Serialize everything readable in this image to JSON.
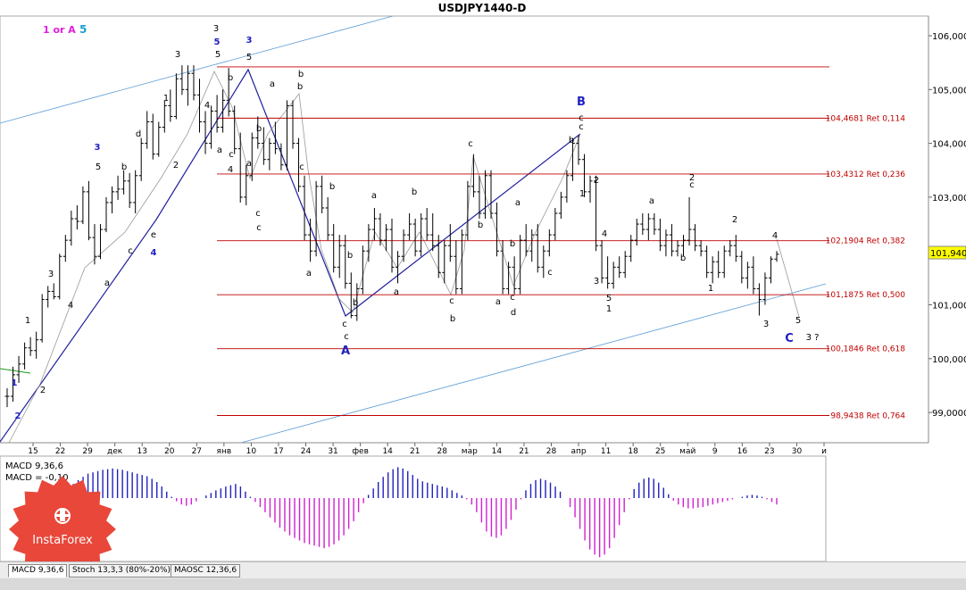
{
  "chart_data": {
    "type": "ohlc",
    "title": "USDJPY1440-D",
    "price_axis": {
      "ticks": [
        {
          "value": 106.0,
          "label": "106,0000"
        },
        {
          "value": 105.0,
          "label": "105,0000"
        },
        {
          "value": 104.0,
          "label": "104,0000"
        },
        {
          "value": 103.0,
          "label": "103,0000"
        },
        {
          "value": 101.0,
          "label": "101,0000"
        },
        {
          "value": 100.0,
          "label": "100,0000"
        },
        {
          "value": 99.0,
          "label": "99,0000"
        }
      ],
      "range": [
        98.5,
        106.4
      ]
    },
    "date_axis": {
      "ticks": [
        "15",
        "22",
        "29",
        "дек",
        "13",
        "20",
        "27",
        "янв",
        "10",
        "17",
        "24",
        "31",
        "фев",
        "14",
        "21",
        "28",
        "мар",
        "14",
        "21",
        "28",
        "апр",
        "11",
        "18",
        "25",
        "май",
        "9",
        "16",
        "23",
        "30",
        "и"
      ]
    },
    "current_price": {
      "value": 101.94,
      "label": "101,940",
      "color": "#ffff00"
    },
    "levels": [
      {
        "value": 105.42,
        "label": ""
      },
      {
        "value": 104.4681,
        "label": "104,4681 Ret 0,114"
      },
      {
        "value": 103.4312,
        "label": "103,4312 Ret 0,236"
      },
      {
        "value": 102.1904,
        "label": "102,1904 Ret 0,382"
      },
      {
        "value": 101.1875,
        "label": "101,1875 Ret 0,500"
      },
      {
        "value": 100.1846,
        "label": "100,1846 Ret 0,618"
      },
      {
        "value": 98.9438,
        "label": "98,9438 Ret 0,764"
      }
    ],
    "header_labels": [
      {
        "text": "1 or A",
        "color": "#e020e0"
      },
      {
        "text": "5",
        "color": "#1aa0d0"
      }
    ],
    "ohlc_bars": [
      [
        99.3,
        99.45,
        99.1,
        99.3
      ],
      [
        99.3,
        99.85,
        99.2,
        99.7
      ],
      [
        99.7,
        100.05,
        99.55,
        99.9
      ],
      [
        99.9,
        100.3,
        99.8,
        100.2
      ],
      [
        100.2,
        100.4,
        100.05,
        100.15
      ],
      [
        100.15,
        100.5,
        100.0,
        100.35
      ],
      [
        100.35,
        101.2,
        100.3,
        101.1
      ],
      [
        101.1,
        101.35,
        100.95,
        101.25
      ],
      [
        101.25,
        101.4,
        101.1,
        101.15
      ],
      [
        101.15,
        101.95,
        101.1,
        101.9
      ],
      [
        101.9,
        102.3,
        101.8,
        102.2
      ],
      [
        102.2,
        102.75,
        102.1,
        102.6
      ],
      [
        102.6,
        102.85,
        102.4,
        102.55
      ],
      [
        102.55,
        103.2,
        102.5,
        103.1
      ],
      [
        103.1,
        103.3,
        102.2,
        102.25
      ],
      [
        102.25,
        102.5,
        101.75,
        101.9
      ],
      [
        101.9,
        102.5,
        101.85,
        102.4
      ],
      [
        102.4,
        103.0,
        102.35,
        102.9
      ],
      [
        102.9,
        103.2,
        102.7,
        103.1
      ],
      [
        103.1,
        103.4,
        102.95,
        103.15
      ],
      [
        103.15,
        103.5,
        103.05,
        103.3
      ],
      [
        103.3,
        103.45,
        102.8,
        102.9
      ],
      [
        102.9,
        103.5,
        102.7,
        103.4
      ],
      [
        103.4,
        104.1,
        103.3,
        104.0
      ],
      [
        104.0,
        104.6,
        103.9,
        104.4
      ],
      [
        104.4,
        104.55,
        103.7,
        103.8
      ],
      [
        103.8,
        104.4,
        103.75,
        104.3
      ],
      [
        104.3,
        104.8,
        104.2,
        104.7
      ],
      [
        104.7,
        105.0,
        104.4,
        104.5
      ],
      [
        104.5,
        105.3,
        104.45,
        105.2
      ],
      [
        105.2,
        105.45,
        104.9,
        105.0
      ],
      [
        105.0,
        105.45,
        104.7,
        105.3
      ],
      [
        105.3,
        105.45,
        104.8,
        104.9
      ],
      [
        104.9,
        105.2,
        104.2,
        104.4
      ],
      [
        104.4,
        104.6,
        103.8,
        104.0
      ],
      [
        104.0,
        104.7,
        103.9,
        104.6
      ],
      [
        104.6,
        104.9,
        104.2,
        104.3
      ],
      [
        104.3,
        105.0,
        104.2,
        104.8
      ],
      [
        104.8,
        105.4,
        104.5,
        104.6
      ],
      [
        104.6,
        104.7,
        103.8,
        103.9
      ],
      [
        103.9,
        104.2,
        102.9,
        103.0
      ],
      [
        103.0,
        103.6,
        102.85,
        103.4
      ],
      [
        103.4,
        104.2,
        103.3,
        104.1
      ],
      [
        104.1,
        104.5,
        103.9,
        104.0
      ],
      [
        104.0,
        104.3,
        103.6,
        103.7
      ],
      [
        103.7,
        104.1,
        103.5,
        104.0
      ],
      [
        104.0,
        104.4,
        103.8,
        103.9
      ],
      [
        103.9,
        104.0,
        103.5,
        103.6
      ],
      [
        103.6,
        104.8,
        103.5,
        104.7
      ],
      [
        104.7,
        104.8,
        103.9,
        104.0
      ],
      [
        104.0,
        104.1,
        103.1,
        103.2
      ],
      [
        103.2,
        103.4,
        102.2,
        102.3
      ],
      [
        102.3,
        102.6,
        101.8,
        102.0
      ],
      [
        102.0,
        103.3,
        101.9,
        103.2
      ],
      [
        103.2,
        103.4,
        102.7,
        102.8
      ],
      [
        102.8,
        103.0,
        102.2,
        102.3
      ],
      [
        102.3,
        102.5,
        101.6,
        101.7
      ],
      [
        101.7,
        102.3,
        101.5,
        102.1
      ],
      [
        102.1,
        102.3,
        101.3,
        101.4
      ],
      [
        101.4,
        101.6,
        100.75,
        100.8
      ],
      [
        100.8,
        101.4,
        100.7,
        101.3
      ],
      [
        101.3,
        102.1,
        101.2,
        102.0
      ],
      [
        102.0,
        102.5,
        101.8,
        102.4
      ],
      [
        102.4,
        102.8,
        102.2,
        102.6
      ],
      [
        102.6,
        102.7,
        102.1,
        102.2
      ],
      [
        102.2,
        102.5,
        102.0,
        102.4
      ],
      [
        102.4,
        102.6,
        101.6,
        101.7
      ],
      [
        101.7,
        102.0,
        101.4,
        101.9
      ],
      [
        101.9,
        102.4,
        101.8,
        102.3
      ],
      [
        102.3,
        102.7,
        102.2,
        102.5
      ],
      [
        102.5,
        102.6,
        101.9,
        102.0
      ],
      [
        102.0,
        102.7,
        101.9,
        102.6
      ],
      [
        102.6,
        102.8,
        102.2,
        102.3
      ],
      [
        102.3,
        102.7,
        102.0,
        102.1
      ],
      [
        102.1,
        102.3,
        101.5,
        101.6
      ],
      [
        101.6,
        102.2,
        101.4,
        102.1
      ],
      [
        102.1,
        102.5,
        101.8,
        101.9
      ],
      [
        101.9,
        102.2,
        101.2,
        101.3
      ],
      [
        101.3,
        102.4,
        101.2,
        102.3
      ],
      [
        102.3,
        103.3,
        102.2,
        103.2
      ],
      [
        103.2,
        103.8,
        103.0,
        103.1
      ],
      [
        103.1,
        103.4,
        102.6,
        102.7
      ],
      [
        102.7,
        103.5,
        102.6,
        103.4
      ],
      [
        103.4,
        103.5,
        102.6,
        102.7
      ],
      [
        102.7,
        102.9,
        101.9,
        102.0
      ],
      [
        102.0,
        102.2,
        101.2,
        101.3
      ],
      [
        101.3,
        101.8,
        101.2,
        101.7
      ],
      [
        101.7,
        101.9,
        101.2,
        101.3
      ],
      [
        101.3,
        102.3,
        101.2,
        102.2
      ],
      [
        102.2,
        102.5,
        101.9,
        102.0
      ],
      [
        102.0,
        102.4,
        101.8,
        102.3
      ],
      [
        102.3,
        102.5,
        101.6,
        101.7
      ],
      [
        101.7,
        102.1,
        101.5,
        102.0
      ],
      [
        102.0,
        102.4,
        101.9,
        102.3
      ],
      [
        102.3,
        102.8,
        102.2,
        102.7
      ],
      [
        102.7,
        103.1,
        102.6,
        103.0
      ],
      [
        103.0,
        103.5,
        102.9,
        103.4
      ],
      [
        103.4,
        104.1,
        103.3,
        104.0
      ],
      [
        104.0,
        104.15,
        103.6,
        103.7
      ],
      [
        103.7,
        103.8,
        103.0,
        103.1
      ],
      [
        103.1,
        103.4,
        102.9,
        103.3
      ],
      [
        103.3,
        103.4,
        102.0,
        102.1
      ],
      [
        102.1,
        102.2,
        101.4,
        101.5
      ],
      [
        101.5,
        101.9,
        101.3,
        101.4
      ],
      [
        101.4,
        101.8,
        101.3,
        101.7
      ],
      [
        101.7,
        101.9,
        101.5,
        101.6
      ],
      [
        101.6,
        102.0,
        101.5,
        101.9
      ],
      [
        101.9,
        102.3,
        101.8,
        102.2
      ],
      [
        102.2,
        102.6,
        102.1,
        102.5
      ],
      [
        102.5,
        102.7,
        102.3,
        102.4
      ],
      [
        102.4,
        102.7,
        102.2,
        102.6
      ],
      [
        102.6,
        102.7,
        102.3,
        102.4
      ],
      [
        102.4,
        102.6,
        102.0,
        102.1
      ],
      [
        102.1,
        102.4,
        101.9,
        102.3
      ],
      [
        102.3,
        102.5,
        101.9,
        102.0
      ],
      [
        102.0,
        102.2,
        101.9,
        102.1
      ],
      [
        102.1,
        102.3,
        101.9,
        102.2
      ],
      [
        102.2,
        103.0,
        102.1,
        102.4
      ],
      [
        102.4,
        102.5,
        102.0,
        102.1
      ],
      [
        102.1,
        102.2,
        101.9,
        102.0
      ],
      [
        102.0,
        102.1,
        101.5,
        101.6
      ],
      [
        101.6,
        101.9,
        101.4,
        101.8
      ],
      [
        101.8,
        102.0,
        101.5,
        101.6
      ],
      [
        101.6,
        102.1,
        101.5,
        102.0
      ],
      [
        102.0,
        102.2,
        101.9,
        102.1
      ],
      [
        102.1,
        102.3,
        101.8,
        101.9
      ],
      [
        101.9,
        102.0,
        101.4,
        101.5
      ],
      [
        101.5,
        101.8,
        101.3,
        101.7
      ],
      [
        101.7,
        101.9,
        101.2,
        101.3
      ],
      [
        101.3,
        101.4,
        100.8,
        101.1
      ],
      [
        101.1,
        101.6,
        101.0,
        101.5
      ],
      [
        101.5,
        101.9,
        101.4,
        101.85
      ],
      [
        101.85,
        102.0,
        101.8,
        101.94
      ]
    ],
    "wave_labels": [
      {
        "text": "1",
        "color": "#2020c0"
      },
      {
        "text": "2",
        "color": "#2020c0"
      },
      {
        "text": "1",
        "color": "#000000"
      },
      {
        "text": "2",
        "color": "#000000"
      },
      {
        "text": "3",
        "color": "#000000"
      },
      {
        "text": "4",
        "color": "#000000"
      },
      {
        "text": "a",
        "color": "#000000"
      },
      {
        "text": "5",
        "color": "#000000"
      },
      {
        "text": "3",
        "color": "#2020c0"
      },
      {
        "text": "c",
        "color": "#000000"
      },
      {
        "text": "e",
        "color": "#000000"
      },
      {
        "text": "4",
        "color": "#2020c0"
      },
      {
        "text": "b",
        "color": "#000000"
      },
      {
        "text": "d",
        "color": "#000000"
      },
      {
        "text": "1",
        "color": "#000000"
      },
      {
        "text": "2",
        "color": "#000000"
      },
      {
        "text": "3",
        "color": "#000000"
      },
      {
        "text": "4",
        "color": "#000000"
      },
      {
        "text": "5",
        "color": "#000000"
      },
      {
        "text": "3",
        "color": "#000000"
      },
      {
        "text": "5",
        "color": "#2020c0"
      },
      {
        "text": "3",
        "color": "#2020c0"
      },
      {
        "text": "5",
        "color": "#000000"
      },
      {
        "text": "b",
        "color": "#000000"
      },
      {
        "text": "a",
        "color": "#000000"
      },
      {
        "text": "c",
        "color": "#000000"
      },
      {
        "text": "4",
        "color": "#000000"
      },
      {
        "text": "a",
        "color": "#000000"
      },
      {
        "text": "c",
        "color": "#000000"
      },
      {
        "text": "b",
        "color": "#000000"
      },
      {
        "text": "c",
        "color": "#000000"
      },
      {
        "text": "a",
        "color": "#000000"
      },
      {
        "text": "b",
        "color": "#000000"
      },
      {
        "text": "b",
        "color": "#000000"
      },
      {
        "text": "c",
        "color": "#000000"
      },
      {
        "text": "a",
        "color": "#000000"
      },
      {
        "text": "b",
        "color": "#000000"
      },
      {
        "text": "b",
        "color": "#000000"
      },
      {
        "text": "c",
        "color": "#000000"
      },
      {
        "text": "c",
        "color": "#000000"
      },
      {
        "text": "A",
        "color": "#2020c0"
      },
      {
        "text": "a",
        "color": "#000000"
      },
      {
        "text": "b",
        "color": "#000000"
      },
      {
        "text": "a",
        "color": "#000000"
      },
      {
        "text": "b",
        "color": "#000000"
      },
      {
        "text": "c",
        "color": "#000000"
      },
      {
        "text": "c",
        "color": "#000000"
      },
      {
        "text": "b",
        "color": "#000000"
      },
      {
        "text": "b",
        "color": "#000000"
      },
      {
        "text": "a",
        "color": "#000000"
      },
      {
        "text": "b",
        "color": "#000000"
      },
      {
        "text": "c",
        "color": "#000000"
      },
      {
        "text": "a",
        "color": "#000000"
      },
      {
        "text": "c",
        "color": "#000000"
      },
      {
        "text": "d",
        "color": "#000000"
      },
      {
        "text": "b",
        "color": "#000000"
      },
      {
        "text": "B",
        "color": "#2020c0"
      },
      {
        "text": "c",
        "color": "#000000"
      },
      {
        "text": "c",
        "color": "#000000"
      },
      {
        "text": "1",
        "color": "#000000"
      },
      {
        "text": "2",
        "color": "#000000"
      },
      {
        "text": "4",
        "color": "#000000"
      },
      {
        "text": "3",
        "color": "#000000"
      },
      {
        "text": "5",
        "color": "#000000"
      },
      {
        "text": "1",
        "color": "#000000"
      },
      {
        "text": "a",
        "color": "#000000"
      },
      {
        "text": "b",
        "color": "#000000"
      },
      {
        "text": "2",
        "color": "#000000"
      },
      {
        "text": "c",
        "color": "#000000"
      },
      {
        "text": "2",
        "color": "#000000"
      },
      {
        "text": "1",
        "color": "#000000"
      },
      {
        "text": "4",
        "color": "#000000"
      },
      {
        "text": "3",
        "color": "#000000"
      },
      {
        "text": "5",
        "color": "#000000"
      },
      {
        "text": "C",
        "color": "#2020c0"
      },
      {
        "text": "3 ?",
        "color": "#000000"
      }
    ],
    "indicator": {
      "name": "MACD 9,36,6",
      "value_label": "MACD = -0,10",
      "bar_color": "#d020d0",
      "positive_bar_color": "#2020c0"
    },
    "indicator_values": [
      0.1,
      0.12,
      0.15,
      0.18,
      0.22,
      0.28,
      0.33,
      0.38,
      0.4,
      0.42,
      0.44,
      0.45,
      0.46,
      0.45,
      0.44,
      0.42,
      0.4,
      0.38,
      0.36,
      0.34,
      0.3,
      0.25,
      0.18,
      0.1,
      0.02,
      -0.05,
      -0.1,
      -0.12,
      -0.1,
      -0.05,
      0.0,
      0.04,
      0.08,
      0.12,
      0.15,
      0.18,
      0.2,
      0.22,
      0.18,
      0.1,
      0.02,
      -0.06,
      -0.14,
      -0.22,
      -0.3,
      -0.38,
      -0.46,
      -0.52,
      -0.58,
      -0.62,
      -0.66,
      -0.7,
      -0.72,
      -0.74,
      -0.76,
      -0.78,
      -0.76,
      -0.72,
      -0.66,
      -0.58,
      -0.48,
      -0.36,
      -0.22,
      -0.08,
      0.05,
      0.15,
      0.25,
      0.33,
      0.4,
      0.45,
      0.48,
      0.46,
      0.42,
      0.36,
      0.3,
      0.26,
      0.24,
      0.22,
      0.2,
      0.18,
      0.16,
      0.12,
      0.08,
      0.04,
      -0.02,
      -0.1,
      -0.22,
      -0.38,
      -0.52,
      -0.6,
      -0.62,
      -0.58,
      -0.48,
      -0.34,
      -0.18,
      -0.02,
      0.12,
      0.22,
      0.28,
      0.3,
      0.28,
      0.24,
      0.18,
      0.1,
      0.0,
      -0.14,
      -0.3,
      -0.48,
      -0.66,
      -0.8,
      -0.88,
      -0.92,
      -0.88,
      -0.78,
      -0.62,
      -0.42,
      -0.22,
      -0.02,
      0.14,
      0.24,
      0.3,
      0.32,
      0.3,
      0.24,
      0.16,
      0.06,
      -0.04,
      -0.1,
      -0.14,
      -0.16,
      -0.16,
      -0.15,
      -0.14,
      -0.12,
      -0.1,
      -0.08,
      -0.06,
      -0.04,
      -0.02,
      0.0,
      0.02,
      0.04,
      0.05,
      0.04,
      0.02,
      -0.02,
      -0.06,
      -0.1
    ]
  },
  "tabs": [
    {
      "label": "MACD 9,36,6"
    },
    {
      "label": "Stoch 13,3,3 (80%-20%)"
    },
    {
      "label": "MAOSC 12,36,6"
    }
  ],
  "watermark": {
    "brand": "InstaForex"
  }
}
